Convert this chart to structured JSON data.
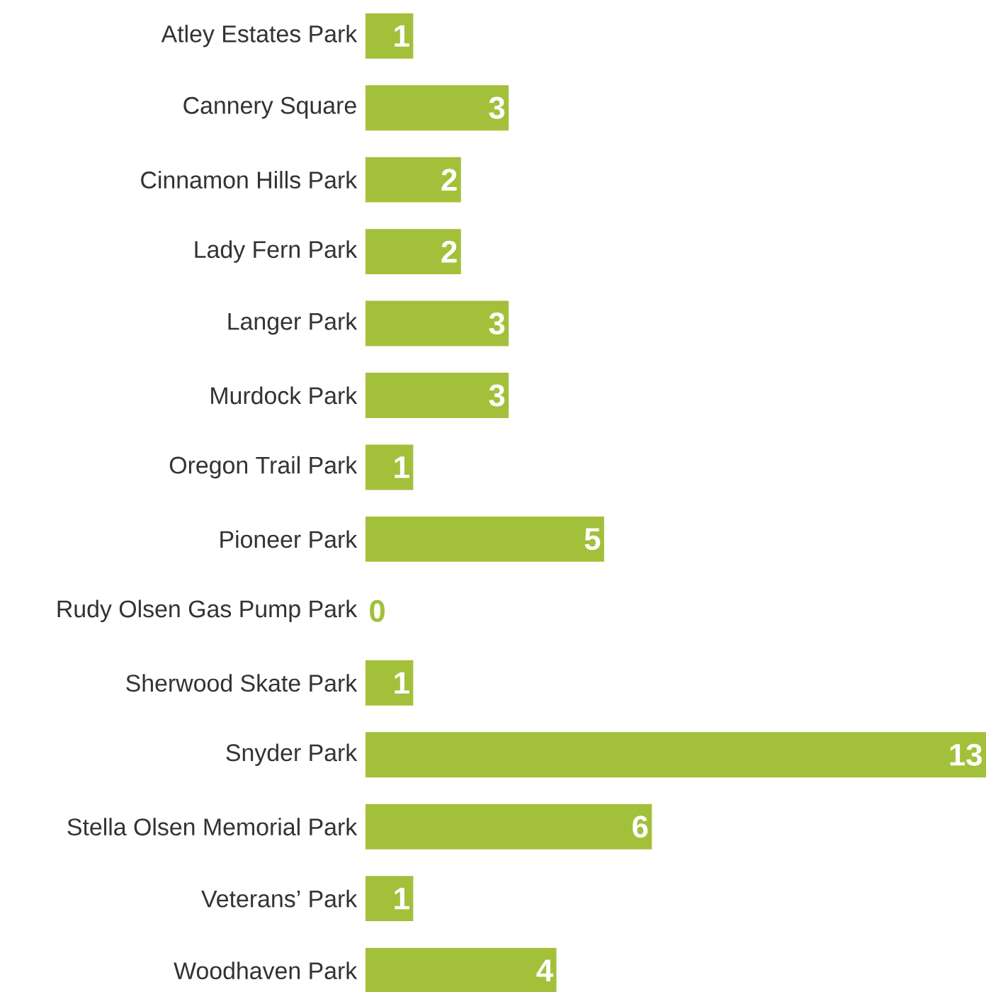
{
  "chart_data": {
    "type": "bar",
    "orientation": "horizontal",
    "categories": [
      "Atley Estates Park",
      "Cannery Square",
      "Cinnamon Hills Park",
      "Lady Fern Park",
      "Langer Park",
      "Murdock Park",
      "Oregon Trail Park",
      "Pioneer Park",
      "Rudy Olsen Gas Pump Park",
      "Sherwood Skate Park",
      "Snyder Park",
      "Stella Olsen Memorial Park",
      "Veterans’ Park",
      "Woodhaven Park"
    ],
    "values": [
      1,
      3,
      2,
      2,
      3,
      3,
      1,
      5,
      0,
      1,
      13,
      6,
      1,
      4
    ],
    "color": "#a3c03b",
    "data_labels": true
  }
}
